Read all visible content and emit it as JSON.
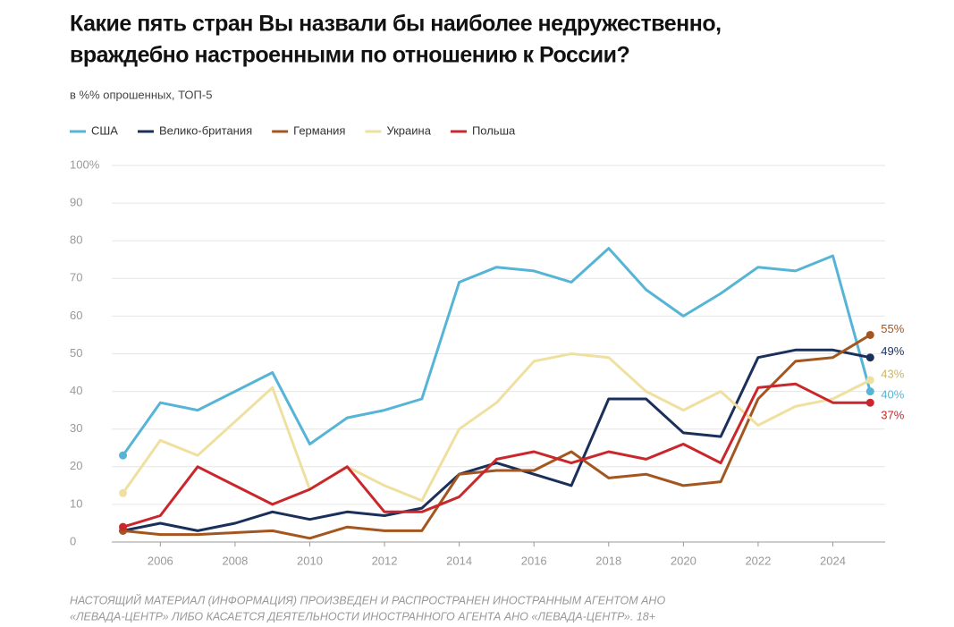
{
  "chart_data": {
    "type": "line",
    "title": [
      "Какие пять стран Вы назвали бы наиболее недружественно,",
      "враждебно настроенными по отношению к России?"
    ],
    "subtitle": "в %% опрошенных, ТОП-5",
    "x": [
      2005,
      2006,
      2007,
      2008,
      2009,
      2010,
      2011,
      2012,
      2013,
      2014,
      2015,
      2016,
      2017,
      2018,
      2019,
      2020,
      2021,
      2022,
      2023,
      2024,
      2025
    ],
    "xlim": [
      2004.7,
      2025.4
    ],
    "xticks": [
      2006,
      2008,
      2010,
      2012,
      2014,
      2016,
      2018,
      2020,
      2022,
      2024
    ],
    "ylim": [
      0,
      100
    ],
    "yticks": [
      0,
      10,
      20,
      30,
      40,
      50,
      60,
      70,
      80,
      90,
      {
        "value": 100,
        "label": "100%"
      }
    ],
    "grid": true,
    "legend": "top",
    "series": [
      {
        "name": "США",
        "color": "#56b4d6",
        "values": [
          23,
          37,
          35,
          40,
          45,
          26,
          33,
          35,
          38,
          69,
          73,
          72,
          69,
          78,
          67,
          60,
          66,
          73,
          72,
          76,
          40
        ],
        "value_labels": [
          null,
          null,
          null,
          null,
          null,
          null,
          null,
          null,
          null,
          null,
          null,
          null,
          null,
          null,
          null,
          null,
          null,
          null,
          null,
          null,
          "40%"
        ]
      },
      {
        "name": "Велико-британия",
        "color": "#1b2f5b",
        "values": [
          3,
          5,
          3,
          5,
          8,
          6,
          8,
          7,
          9,
          18,
          21,
          18,
          15,
          38,
          38,
          29,
          28,
          49,
          51,
          51,
          49
        ],
        "value_labels": [
          null,
          null,
          null,
          null,
          null,
          null,
          null,
          null,
          null,
          null,
          null,
          null,
          null,
          null,
          null,
          null,
          null,
          null,
          null,
          null,
          "49%"
        ]
      },
      {
        "name": "Германия",
        "color": "#a3561f",
        "values": [
          3,
          2,
          2,
          2.5,
          3,
          1,
          4,
          3,
          3,
          18,
          19,
          19,
          24,
          17,
          18,
          15,
          16,
          38,
          48,
          49,
          55
        ],
        "value_labels": [
          null,
          null,
          null,
          null,
          null,
          null,
          null,
          null,
          null,
          null,
          null,
          null,
          null,
          null,
          null,
          null,
          null,
          null,
          null,
          null,
          "55%"
        ]
      },
      {
        "name": "Украина",
        "color": "#efe0a0",
        "values": [
          13,
          27,
          23,
          32,
          41,
          14,
          20,
          15,
          11,
          30,
          37,
          48,
          50,
          49,
          40,
          35,
          40,
          31,
          36,
          38,
          43
        ],
        "value_labels": [
          null,
          null,
          null,
          null,
          null,
          null,
          null,
          null,
          null,
          null,
          null,
          null,
          null,
          null,
          null,
          null,
          null,
          null,
          null,
          null,
          "43%"
        ]
      },
      {
        "name": "Польша",
        "color": "#c9272c",
        "values": [
          4,
          7,
          20,
          15,
          10,
          14,
          20,
          8,
          8,
          12,
          22,
          24,
          21,
          24,
          22,
          26,
          21,
          41,
          42,
          37,
          37
        ],
        "value_labels": [
          null,
          null,
          null,
          null,
          null,
          null,
          null,
          null,
          null,
          null,
          null,
          null,
          null,
          null,
          null,
          null,
          null,
          null,
          null,
          null,
          "37%"
        ]
      }
    ],
    "footer": [
      "НАСТОЯЩИЙ МАТЕРИАЛ (ИНФОРМАЦИЯ) ПРОИЗВЕДЕН И РАСПРОСТРАНЕН ИНОСТРАННЫМ АГЕНТОМ АНО",
      "«ЛЕВАДА-ЦЕНТР» ЛИБО КАСАЕТСЯ ДЕЯТЕЛЬНОСТИ ИНОСТРАННОГО АГЕНТА АНО «ЛЕВАДА-ЦЕНТР». 18+"
    ]
  }
}
